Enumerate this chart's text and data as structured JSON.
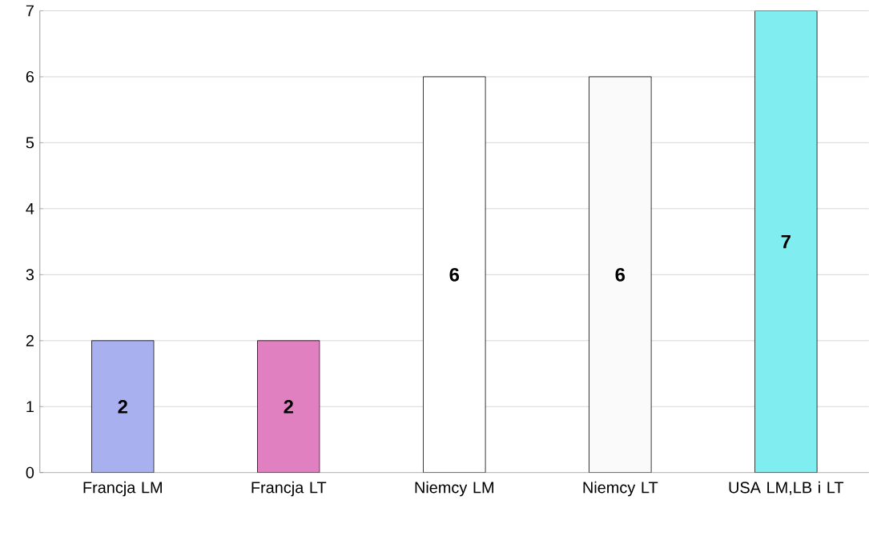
{
  "chart_data": {
    "type": "bar",
    "categories": [
      "Francja LM",
      "Francja LT",
      "Niemcy LM",
      "Niemcy LT",
      "USA LM,LB i LT"
    ],
    "values": [
      2,
      2,
      6,
      6,
      7
    ],
    "colors": [
      "#a8b0f0",
      "#e080c0",
      "#ffffff",
      "#fafafa",
      "#80eef0"
    ],
    "ylim": [
      0,
      7
    ],
    "yticks": [
      0,
      1,
      2,
      3,
      4,
      5,
      6,
      7
    ],
    "grid": "y",
    "data_labels": true
  }
}
